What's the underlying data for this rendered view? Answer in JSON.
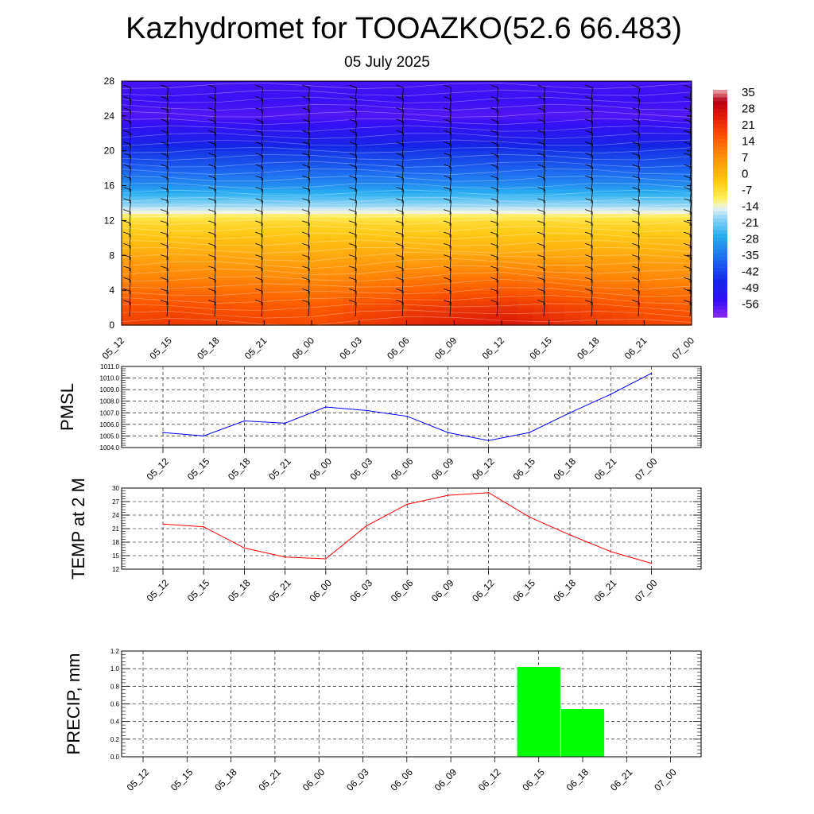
{
  "header": {
    "title": "Kazhydromet for TOOAZKO(52.6 66.483)",
    "date": "05 July 2025"
  },
  "colors": {
    "pmsl_line": "#0000ff",
    "temp_line": "#ff0000",
    "precip_bar": "#00ff00",
    "grid": "#000000"
  },
  "time_labels": [
    "05_12",
    "05_15",
    "05_18",
    "05_21",
    "06_00",
    "06_03",
    "06_06",
    "06_09",
    "06_12",
    "06_15",
    "06_18",
    "06_21",
    "07_00"
  ],
  "chart_data": [
    {
      "id": "cross_section",
      "type": "heatmap",
      "x": [
        "05_12",
        "05_15",
        "05_18",
        "05_21",
        "06_00",
        "06_03",
        "06_06",
        "06_09",
        "06_12",
        "06_15",
        "06_18",
        "06_21",
        "07_00"
      ],
      "yticks": [
        "0",
        "4",
        "8",
        "12",
        "16",
        "20",
        "24",
        "28"
      ],
      "ylim": [
        0,
        28
      ],
      "colorbar_labels": [
        "35",
        "28",
        "21",
        "14",
        "7",
        "0",
        "-7",
        "-14",
        "-21",
        "-28",
        "-35",
        "-42",
        "-49",
        "-56"
      ],
      "colorbar_range": [
        -63,
        42
      ],
      "level_profile": {
        "levels": [
          0,
          2,
          4,
          6,
          8,
          10,
          12,
          13,
          14,
          16,
          18,
          20,
          22,
          24,
          26,
          28
        ],
        "values": [
          24,
          21,
          16,
          11,
          6,
          1,
          -4,
          -12,
          -18,
          -30,
          -38,
          -44,
          -52,
          -58,
          -56,
          -57
        ]
      },
      "surface_anomaly": [
        0,
        1,
        0,
        -1,
        -2,
        1,
        4,
        6,
        7,
        4,
        1,
        -1,
        -2
      ],
      "wind_barbs": true
    },
    {
      "id": "pmsl",
      "type": "line",
      "ylabel": "PMSL",
      "x": [
        "05_12",
        "05_15",
        "05_18",
        "05_21",
        "06_00",
        "06_03",
        "06_06",
        "06_09",
        "06_12",
        "06_15",
        "06_18",
        "06_21",
        "07_00"
      ],
      "values": [
        1005.3,
        1005.0,
        1006.3,
        1006.1,
        1007.5,
        1007.2,
        1006.7,
        1005.3,
        1004.6,
        1005.3,
        1007.0,
        1008.6,
        1010.4
      ],
      "ylim": [
        1004.0,
        1011.0
      ],
      "yticks": [
        "1004.0",
        "1005.0",
        "1006.0",
        "1007.0",
        "1008.0",
        "1009.0",
        "1010.0",
        "1011.0"
      ],
      "grid": true
    },
    {
      "id": "temp",
      "type": "line",
      "ylabel": "TEMP at 2 M",
      "x": [
        "05_12",
        "05_15",
        "05_18",
        "05_21",
        "06_00",
        "06_03",
        "06_06",
        "06_09",
        "06_12",
        "06_15",
        "06_18",
        "06_21",
        "07_00"
      ],
      "values": [
        22.0,
        21.4,
        16.7,
        14.7,
        14.3,
        21.6,
        26.4,
        28.4,
        29.0,
        23.6,
        19.6,
        15.9,
        13.3
      ],
      "ylim": [
        12,
        30
      ],
      "yticks": [
        "12",
        "15",
        "18",
        "21",
        "24",
        "27",
        "30"
      ],
      "grid": true
    },
    {
      "id": "precip",
      "type": "bar",
      "ylabel": "PRECIP, mm",
      "x": [
        "05_12",
        "05_15",
        "05_18",
        "05_21",
        "06_00",
        "06_03",
        "06_06",
        "06_09",
        "06_12",
        "06_15",
        "06_18",
        "06_21",
        "07_00"
      ],
      "values": [
        0,
        0,
        0,
        0,
        0,
        0,
        0,
        0,
        0,
        1.02,
        0.54,
        0,
        0
      ],
      "ylim": [
        0,
        1.2
      ],
      "yticks": [
        "0.0",
        "0.2",
        "0.4",
        "0.6",
        "0.8",
        "1.0",
        "1.2"
      ],
      "grid": true
    }
  ]
}
